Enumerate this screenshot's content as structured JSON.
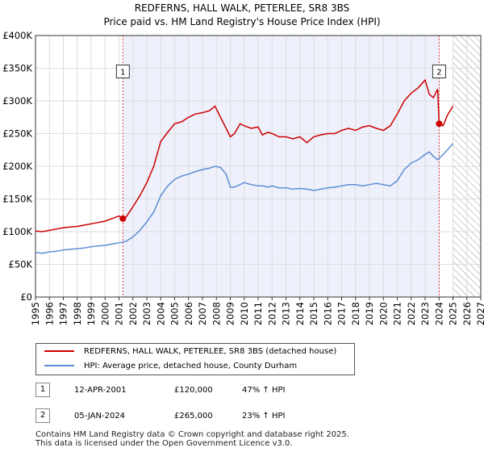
{
  "chart_data": {
    "type": "line",
    "title": "REDFERNS, HALL WALK, PETERLEE, SR8 3BS",
    "subtitle": "Price paid vs. HM Land Registry's House Price Index (HPI)",
    "xlim": [
      1995,
      2027
    ],
    "ylim": [
      0,
      400000
    ],
    "x_ticks": [
      "1995",
      "1996",
      "1997",
      "1998",
      "1999",
      "2000",
      "2001",
      "2002",
      "2003",
      "2004",
      "2005",
      "2006",
      "2007",
      "2008",
      "2009",
      "2010",
      "2011",
      "2012",
      "2013",
      "2014",
      "2015",
      "2016",
      "2017",
      "2018",
      "2019",
      "2020",
      "2021",
      "2022",
      "2023",
      "2024",
      "2025",
      "2026",
      "2027"
    ],
    "y_ticks": [
      {
        "value": 0,
        "label": "£0"
      },
      {
        "value": 50000,
        "label": "£50K"
      },
      {
        "value": 100000,
        "label": "£100K"
      },
      {
        "value": 150000,
        "label": "£150K"
      },
      {
        "value": 200000,
        "label": "£200K"
      },
      {
        "value": 250000,
        "label": "£250K"
      },
      {
        "value": 300000,
        "label": "£300K"
      },
      {
        "value": 350000,
        "label": "£350K"
      },
      {
        "value": 400000,
        "label": "£400K"
      }
    ],
    "shaded_region": {
      "from": 2001.28,
      "to": 2024.01,
      "color": "#eef0fb"
    },
    "hatched_region": {
      "from": 2025.0,
      "to": 2027
    },
    "series": [
      {
        "name": "REDFERNS, HALL WALK, PETERLEE, SR8 3BS (detached house)",
        "color": "#cc0000",
        "x": [
          1995.0,
          1995.5,
          1996.0,
          1996.5,
          1997.0,
          1997.5,
          1998.0,
          1998.5,
          1999.0,
          1999.5,
          2000.0,
          2000.5,
          2001.0,
          2001.28,
          2001.5,
          2002.0,
          2002.5,
          2003.0,
          2003.5,
          2004.0,
          2004.5,
          2005.0,
          2005.5,
          2006.0,
          2006.5,
          2007.0,
          2007.5,
          2007.9,
          2008.3,
          2008.7,
          2009.0,
          2009.3,
          2009.7,
          2010.0,
          2010.5,
          2011.0,
          2011.3,
          2011.7,
          2012.0,
          2012.5,
          2013.0,
          2013.5,
          2014.0,
          2014.5,
          2015.0,
          2015.5,
          2016.0,
          2016.5,
          2017.0,
          2017.5,
          2018.0,
          2018.5,
          2019.0,
          2019.5,
          2020.0,
          2020.5,
          2021.0,
          2021.5,
          2022.0,
          2022.5,
          2023.0,
          2023.3,
          2023.6,
          2023.9,
          2024.01,
          2024.3,
          2024.6,
          2025.0
        ],
        "y": [
          101000,
          100000,
          102000,
          104000,
          106000,
          107000,
          108000,
          110000,
          112000,
          114000,
          116000,
          120000,
          124000,
          120000,
          122000,
          138000,
          155000,
          175000,
          200000,
          238000,
          252000,
          265000,
          268000,
          275000,
          280000,
          282000,
          285000,
          292000,
          275000,
          258000,
          245000,
          250000,
          265000,
          262000,
          258000,
          260000,
          248000,
          252000,
          250000,
          245000,
          245000,
          242000,
          245000,
          236000,
          245000,
          248000,
          250000,
          250000,
          255000,
          258000,
          255000,
          260000,
          262000,
          258000,
          255000,
          262000,
          280000,
          300000,
          312000,
          320000,
          332000,
          310000,
          305000,
          318000,
          265000,
          262000,
          278000,
          292000
        ]
      },
      {
        "name": "HPI: Average price, detached house, County Durham",
        "color": "#5b8ed6",
        "x": [
          1995.0,
          1995.5,
          1996.0,
          1996.5,
          1997.0,
          1997.5,
          1998.0,
          1998.5,
          1999.0,
          1999.5,
          2000.0,
          2000.5,
          2001.0,
          2001.5,
          2002.0,
          2002.5,
          2003.0,
          2003.5,
          2004.0,
          2004.5,
          2005.0,
          2005.5,
          2006.0,
          2006.5,
          2007.0,
          2007.5,
          2007.9,
          2008.3,
          2008.7,
          2009.0,
          2009.3,
          2009.7,
          2010.0,
          2010.5,
          2011.0,
          2011.3,
          2011.7,
          2012.0,
          2012.5,
          2013.0,
          2013.5,
          2014.0,
          2014.5,
          2015.0,
          2015.5,
          2016.0,
          2016.5,
          2017.0,
          2017.5,
          2018.0,
          2018.5,
          2019.0,
          2019.5,
          2020.0,
          2020.5,
          2021.0,
          2021.5,
          2022.0,
          2022.5,
          2023.0,
          2023.3,
          2023.6,
          2023.9,
          2024.3,
          2024.6,
          2025.0
        ],
        "y": [
          68000,
          67000,
          69000,
          70000,
          72000,
          73000,
          74000,
          75000,
          77000,
          78000,
          79000,
          81000,
          83000,
          85000,
          92000,
          102000,
          115000,
          130000,
          155000,
          170000,
          180000,
          185000,
          188000,
          192000,
          195000,
          197000,
          200000,
          198000,
          188000,
          168000,
          168000,
          172000,
          175000,
          172000,
          170000,
          170000,
          168000,
          170000,
          167000,
          167000,
          165000,
          166000,
          165000,
          163000,
          165000,
          167000,
          168000,
          170000,
          172000,
          172000,
          170000,
          172000,
          174000,
          172000,
          170000,
          178000,
          195000,
          205000,
          210000,
          218000,
          222000,
          215000,
          210000,
          218000,
          225000,
          235000
        ]
      }
    ],
    "annotations": [
      {
        "label": "1",
        "x": 2001.28,
        "price": 120000
      },
      {
        "label": "2",
        "x": 2024.01,
        "price": 265000
      }
    ]
  },
  "legend": {
    "items": [
      {
        "label": "REDFERNS, HALL WALK, PETERLEE, SR8 3BS (detached house)",
        "color": "#cc0000"
      },
      {
        "label": "HPI: Average price, detached house, County Durham",
        "color": "#5b8ed6"
      }
    ]
  },
  "sales": [
    {
      "num": "1",
      "date": "12-APR-2001",
      "price": "£120,000",
      "hpi": "47% ↑ HPI"
    },
    {
      "num": "2",
      "date": "05-JAN-2024",
      "price": "£265,000",
      "hpi": "23% ↑ HPI"
    }
  ],
  "footer": {
    "line1": "Contains HM Land Registry data © Crown copyright and database right 2025.",
    "line2": "This data is licensed under the Open Government Licence v3.0."
  }
}
